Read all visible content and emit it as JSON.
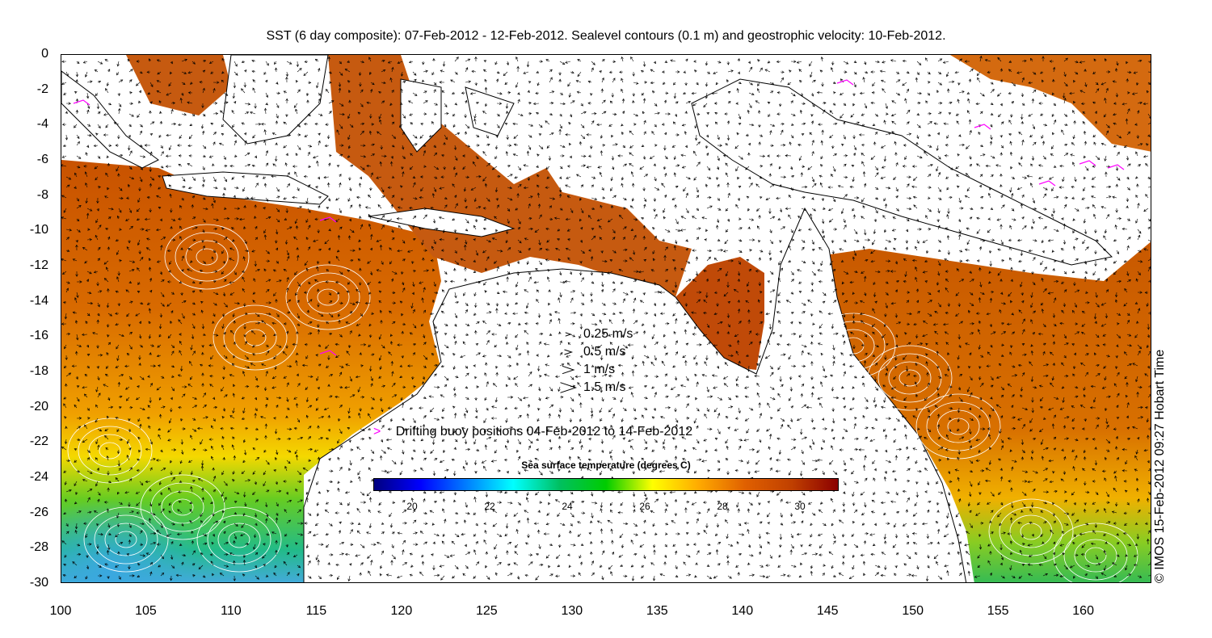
{
  "title": "SST (6 day composite): 07-Feb-2012 - 12-Feb-2012. Sealevel contours (0.1 m) and geostrophic velocity: 10-Feb-2012.",
  "credit": "© IMOS 15-Feb-2012 09:27 Hobart Time",
  "x_axis": {
    "ticks": [
      "100",
      "105",
      "110",
      "115",
      "120",
      "125",
      "130",
      "135",
      "140",
      "145",
      "150",
      "155",
      "160"
    ]
  },
  "y_axis": {
    "ticks": [
      "0",
      "-2",
      "-4",
      "-6",
      "-8",
      "-10",
      "-12",
      "-14",
      "-16",
      "-18",
      "-20",
      "-22",
      "-24",
      "-26",
      "-28",
      "-30"
    ]
  },
  "map": {
    "lon_range": [
      100,
      164
    ],
    "lat_range": [
      -30,
      0
    ],
    "land_color": "#ffffff",
    "coast_color": "#000000",
    "contour_color": "#ffffff",
    "buoy_color": "#ff00ff"
  },
  "velocity_legend": [
    {
      "label": "0.25 m/s",
      "speed": 0.25
    },
    {
      "label": "0.5 m/s",
      "speed": 0.5
    },
    {
      "label": "1 m/s",
      "speed": 1
    },
    {
      "label": "1.5 m/s",
      "speed": 1.5
    }
  ],
  "buoy_legend": {
    "symbol": ">",
    "label": "Drifting buoy positions 04-Feb-2012 to 14-Feb-2012"
  },
  "colorbar": {
    "title": "Sea surface temperature (degrees C)",
    "min": 19,
    "max": 31,
    "ticks": [
      "20",
      "22",
      "24",
      "26",
      "28",
      "30"
    ],
    "colors": [
      "#00007f",
      "#0000ff",
      "#007fff",
      "#00ffff",
      "#00c060",
      "#00cc00",
      "#ffff00",
      "#ffaa00",
      "#e06000",
      "#c04000",
      "#8b0000"
    ]
  }
}
